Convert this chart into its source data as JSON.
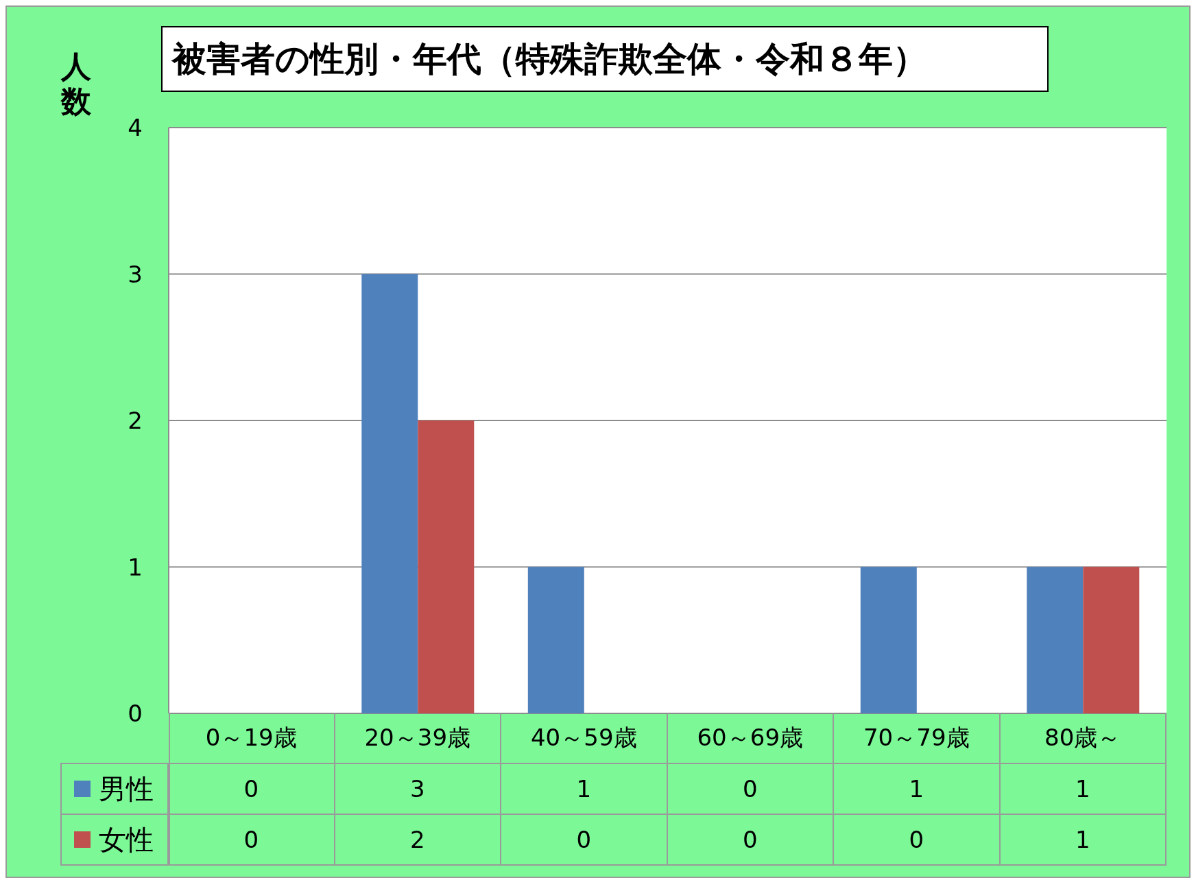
{
  "chart_data": {
    "type": "bar",
    "title": "被害者の性別・年代（特殊詐欺全体・令和８年）",
    "ylabel": "人数",
    "categories": [
      "0～19歳",
      "20～39歳",
      "40～59歳",
      "60～69歳",
      "70～79歳",
      "80歳～"
    ],
    "series": [
      {
        "name": "男性",
        "color": "#4f81bd",
        "values": [
          0,
          3,
          1,
          0,
          1,
          1
        ]
      },
      {
        "name": "女性",
        "color": "#c0504d",
        "values": [
          0,
          2,
          0,
          0,
          0,
          1
        ]
      }
    ],
    "ylim": [
      0,
      4
    ],
    "yticks": [
      0,
      1,
      2,
      3,
      4
    ],
    "grid": "y",
    "legend": "bottom",
    "data_labels": true
  }
}
